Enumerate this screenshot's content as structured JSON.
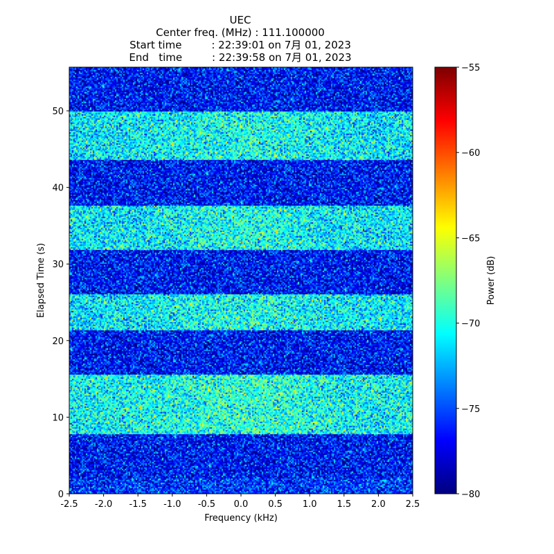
{
  "chart_data": {
    "type": "heatmap",
    "title_lines": [
      "UEC",
      "Center freq. (MHz) : 111.100000",
      "Start time         : 22:39:01 on 7月 01, 2023",
      "End   time         : 22:39:58 on 7月 01, 2023"
    ],
    "xlabel": "Frequency (kHz)",
    "ylabel": "Elapsed Time (s)",
    "xlim": [
      -2.5,
      2.5
    ],
    "ylim": [
      0,
      55.7
    ],
    "x_ticks": [
      -2.5,
      -2.0,
      -1.5,
      -1.0,
      -0.5,
      0.0,
      0.5,
      1.0,
      1.5,
      2.0,
      2.5
    ],
    "x_tick_labels": [
      "-2.5",
      "-2.0",
      "-1.5",
      "-1.0",
      "-0.5",
      "0.0",
      "0.5",
      "1.0",
      "1.5",
      "2.0",
      "2.5"
    ],
    "y_ticks": [
      0,
      10,
      20,
      30,
      40,
      50
    ],
    "y_tick_labels": [
      "0",
      "10",
      "20",
      "30",
      "40",
      "50"
    ],
    "colormap": "jet",
    "colorbar": {
      "label": "Power (dB)",
      "range": [
        -80,
        -55
      ],
      "ticks": [
        -80,
        -75,
        -70,
        -65,
        -60,
        -55
      ],
      "tick_labels": [
        "−80",
        "−75",
        "−70",
        "−65",
        "−60",
        "−55"
      ]
    },
    "bands": [
      {
        "t_start": 0.0,
        "t_end": 2.0,
        "mean_power_db": -75.5
      },
      {
        "t_start": 2.0,
        "t_end": 7.8,
        "mean_power_db": -76.5
      },
      {
        "t_start": 7.8,
        "t_end": 15.5,
        "mean_power_db": -70.5
      },
      {
        "t_start": 15.5,
        "t_end": 21.3,
        "mean_power_db": -76.5
      },
      {
        "t_start": 21.3,
        "t_end": 26.0,
        "mean_power_db": -71.0
      },
      {
        "t_start": 26.0,
        "t_end": 31.8,
        "mean_power_db": -76.5
      },
      {
        "t_start": 31.8,
        "t_end": 37.6,
        "mean_power_db": -71.0
      },
      {
        "t_start": 37.6,
        "t_end": 43.5,
        "mean_power_db": -76.5
      },
      {
        "t_start": 43.5,
        "t_end": 50.0,
        "mean_power_db": -71.0
      },
      {
        "t_start": 50.0,
        "t_end": 55.7,
        "mean_power_db": -76.5
      }
    ],
    "grid": false
  }
}
